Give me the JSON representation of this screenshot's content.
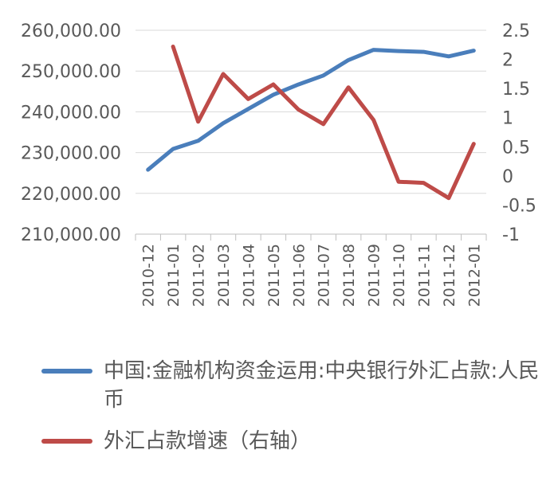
{
  "chart_data": {
    "type": "line",
    "title": "",
    "categories": [
      "2010-12",
      "2011-01",
      "2011-02",
      "2011-03",
      "2011-04",
      "2011-05",
      "2011-06",
      "2011-07",
      "2011-08",
      "2011-09",
      "2011-10",
      "2011-11",
      "2011-12",
      "2012-01"
    ],
    "left_axis": {
      "range": [
        210000,
        260000
      ],
      "ticks": [
        210000,
        220000,
        230000,
        240000,
        250000,
        260000
      ],
      "tick_labels": [
        "210,000.00",
        "220,000.00",
        "230,000.00",
        "240,000.00",
        "250,000.00",
        "260,000.00"
      ]
    },
    "right_axis": {
      "range": [
        -1,
        2.5
      ],
      "ticks": [
        -1,
        -0.5,
        0,
        0.5,
        1,
        1.5,
        2,
        2.5
      ],
      "tick_labels": [
        "-1",
        "-0.5",
        "0",
        "0.5",
        "1",
        "1.5",
        "2",
        "2.5"
      ]
    },
    "grid": true,
    "legend_position": "bottom",
    "series": [
      {
        "name": "中国:金融机构资金运用:中央银行外汇占款:人民币",
        "axis": "left",
        "color": "#4a7ebb",
        "values": [
          225800,
          230900,
          232900,
          237200,
          240700,
          244200,
          246700,
          248900,
          252700,
          255200,
          254900,
          254700,
          253600,
          255000
        ]
      },
      {
        "name": "外汇占款增速（右轴）",
        "axis": "right",
        "color": "#be4b48",
        "values": [
          null,
          2.22,
          0.93,
          1.75,
          1.32,
          1.57,
          1.14,
          0.89,
          1.52,
          0.96,
          -0.1,
          -0.12,
          -0.38,
          0.55
        ]
      }
    ]
  }
}
